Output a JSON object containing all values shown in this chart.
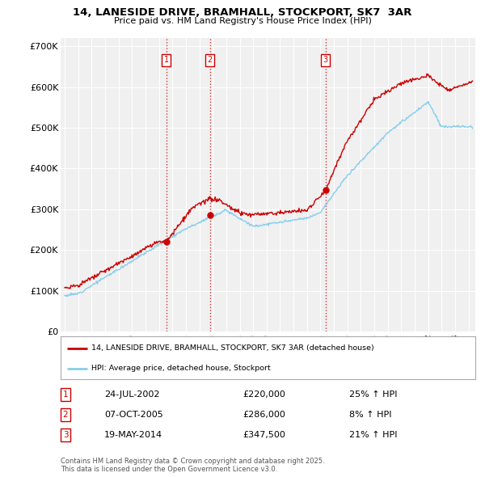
{
  "title_line1": "14, LANESIDE DRIVE, BRAMHALL, STOCKPORT, SK7  3AR",
  "title_line2": "Price paid vs. HM Land Registry's House Price Index (HPI)",
  "ylabel_ticks": [
    "£0",
    "£100K",
    "£200K",
    "£300K",
    "£400K",
    "£500K",
    "£600K",
    "£700K"
  ],
  "ytick_values": [
    0,
    100000,
    200000,
    300000,
    400000,
    500000,
    600000,
    700000
  ],
  "ylim": [
    0,
    720000
  ],
  "xlim_start": 1994.7,
  "xlim_end": 2025.5,
  "sale_dates": [
    2002.56,
    2005.78,
    2014.38
  ],
  "sale_prices": [
    220000,
    286000,
    347500
  ],
  "sale_labels": [
    "1",
    "2",
    "3"
  ],
  "vline_color": "#cc0000",
  "legend_line1": "14, LANESIDE DRIVE, BRAMHALL, STOCKPORT, SK7 3AR (detached house)",
  "legend_line2": "HPI: Average price, detached house, Stockport",
  "table_rows": [
    {
      "label": "1",
      "date": "24-JUL-2002",
      "price": "£220,000",
      "change": "25% ↑ HPI"
    },
    {
      "label": "2",
      "date": "07-OCT-2005",
      "price": "£286,000",
      "change": "8% ↑ HPI"
    },
    {
      "label": "3",
      "date": "19-MAY-2014",
      "price": "£347,500",
      "change": "21% ↑ HPI"
    }
  ],
  "footer_text": "Contains HM Land Registry data © Crown copyright and database right 2025.\nThis data is licensed under the Open Government Licence v3.0.",
  "bg_color": "#ffffff",
  "plot_bg_color": "#f0f0f0",
  "grid_color": "#ffffff",
  "red_line_color": "#cc0000",
  "blue_line_color": "#87CEEB",
  "x_years": [
    1995,
    1996,
    1997,
    1998,
    1999,
    2000,
    2001,
    2002,
    2003,
    2004,
    2005,
    2006,
    2007,
    2008,
    2009,
    2010,
    2011,
    2012,
    2013,
    2014,
    2015,
    2016,
    2017,
    2018,
    2019,
    2020,
    2021,
    2022,
    2023,
    2024,
    2025
  ]
}
